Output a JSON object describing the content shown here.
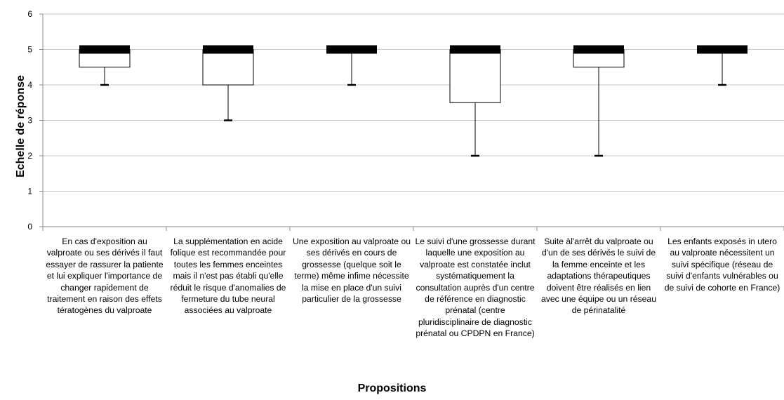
{
  "chart_data": {
    "type": "box",
    "xlabel": "Propositions",
    "ylabel": "Echelle de réponse",
    "ylim": [
      0,
      6
    ],
    "yticks": [
      "0",
      "1",
      "2",
      "3",
      "4",
      "5",
      "6"
    ],
    "grid": true,
    "categories": [
      "En cas d'exposition au valproate ou ses dérivés il faut essayer de rassurer la patiente et lui expliquer l'importance de changer rapidement de traitement en raison des effets tératogènes du valproate",
      "La supplémentation en acide folique est recommandée pour toutes les femmes enceintes mais il n'est pas établi qu'elle réduit le risque d'anomalies de fermeture du tube neural associées au valproate",
      "Une exposition au valproate ou ses dérivés en cours de grossesse (quelque soit le terme) même infime nécessite la mise en place d'un suivi particulier de la grossesse",
      "Le suivi d'une grossesse durant laquelle une exposition au valproate est constatée inclut systématiquement la consultation auprès d'un centre de référence en diagnostic prénatal  (centre pluridisciplinaire de diagnostic prénatal ou CPDPN en France)",
      "Suite àl'arrêt du valproate ou d'un de ses dérivés le suivi de la femme enceinte et les adaptations thérapeutiques doivent être réalisés en lien avec une équipe ou un réseau de périnatalité",
      "Les enfants exposés in utero au valproate nécessitent un suivi spécifique (réseau de suivi d'enfants vulnérables ou de suivi de cohorte en France)"
    ],
    "series": [
      {
        "boxes": [
          {
            "min": 4,
            "q1": 4.5,
            "median": 5,
            "q3": 5,
            "max": 5
          },
          {
            "min": 3,
            "q1": 4,
            "median": 5,
            "q3": 5,
            "max": 5
          },
          {
            "min": 4,
            "q1": 5,
            "median": 5,
            "q3": 5,
            "max": 5
          },
          {
            "min": 2,
            "q1": 3.5,
            "median": 5,
            "q3": 5,
            "max": 5
          },
          {
            "min": 2,
            "q1": 4.5,
            "median": 5,
            "q3": 5,
            "max": 5
          },
          {
            "min": 4,
            "q1": 5,
            "median": 5,
            "q3": 5,
            "max": 5
          }
        ]
      }
    ]
  }
}
